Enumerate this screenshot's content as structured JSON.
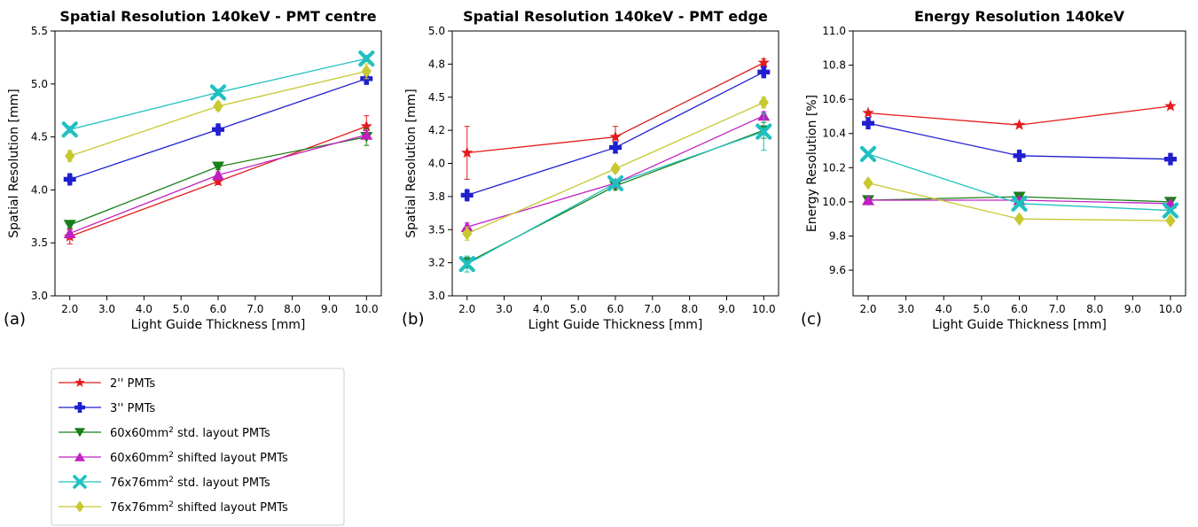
{
  "colors": {
    "2in": "#e41a1c",
    "3in": "#1f1fd0",
    "60std": "#1a7f1a",
    "60shift": "#c020c0",
    "76std": "#20c0c0",
    "76shift": "#c8c830"
  },
  "markers": {
    "2in": "star",
    "3in": "plus",
    "60std": "triangle-down",
    "60shift": "triangle-up",
    "76std": "x",
    "76shift": "diamond"
  },
  "panel_letters": [
    "(a)",
    "(b)",
    "(c)"
  ],
  "legend": {
    "items": [
      {
        "key": "2in",
        "pre": "2'' PMTs",
        "sup": "",
        "post": ""
      },
      {
        "key": "3in",
        "pre": "3'' PMTs",
        "sup": "",
        "post": ""
      },
      {
        "key": "60std",
        "pre": "60x60mm",
        "sup": "2",
        "post": " std. layout PMTs"
      },
      {
        "key": "60shift",
        "pre": "60x60mm",
        "sup": "2",
        "post": " shifted layout PMTs"
      },
      {
        "key": "76std",
        "pre": "76x76mm",
        "sup": "2",
        "post": " std. layout PMTs"
      },
      {
        "key": "76shift",
        "pre": "76x76mm",
        "sup": "2",
        "post": " shifted layout PMTs"
      }
    ]
  },
  "chart_data": [
    {
      "type": "line",
      "title": "Spatial Resolution 140keV - PMT centre",
      "xlabel": "Light Guide Thickness [mm]",
      "ylabel": "Spatial Resolution [mm]",
      "xlim": [
        1.6,
        10.4
      ],
      "ylim": [
        3.0,
        5.5
      ],
      "xticks": [
        "2.0",
        "3.0",
        "4.0",
        "5.0",
        "6.0",
        "7.0",
        "8.0",
        "9.0",
        "10.0"
      ],
      "yticks": [
        "3.0",
        "3.5",
        "4.0",
        "4.5",
        "5.0",
        "5.5"
      ],
      "x": [
        2,
        6,
        10
      ],
      "series": [
        {
          "key": "2in",
          "values": [
            3.56,
            4.08,
            4.6
          ],
          "err": [
            0.07,
            0.03,
            0.1
          ]
        },
        {
          "key": "3in",
          "values": [
            4.1,
            4.57,
            5.05
          ],
          "err": [
            0.03,
            0.03,
            0.04
          ]
        },
        {
          "key": "60std",
          "values": [
            3.67,
            4.22,
            4.5
          ],
          "err": [
            0.03,
            0.03,
            0.08
          ]
        },
        {
          "key": "60shift",
          "values": [
            3.59,
            4.14,
            4.52
          ],
          "err": [
            0.03,
            0.03,
            0.04
          ]
        },
        {
          "key": "76std",
          "values": [
            4.57,
            4.92,
            5.24
          ],
          "err": [
            0.03,
            0.03,
            0.03
          ]
        },
        {
          "key": "76shift",
          "values": [
            4.32,
            4.79,
            5.12
          ],
          "err": [
            0.05,
            0.04,
            0.07
          ]
        }
      ]
    },
    {
      "type": "line",
      "title": "Spatial Resolution 140keV - PMT edge",
      "xlabel": "Light Guide Thickness [mm]",
      "ylabel": "Spatial Resolution [mm]",
      "xlim": [
        1.6,
        10.4
      ],
      "ylim": [
        3.0,
        5.0
      ],
      "xticks": [
        "2.0",
        "3.0",
        "4.0",
        "5.0",
        "6.0",
        "7.0",
        "8.0",
        "9.0",
        "10.0"
      ],
      "yticks": [
        "3.0",
        "3.2",
        "3.5",
        "3.8",
        "4.0",
        "4.2",
        "4.5",
        "4.8",
        "5.0"
      ],
      "ytick_values": [
        3.0,
        3.25,
        3.5,
        3.75,
        4.0,
        4.25,
        4.5,
        4.75,
        5.0
      ],
      "x": [
        2,
        6,
        10
      ],
      "series": [
        {
          "key": "2in",
          "values": [
            4.08,
            4.2,
            4.76
          ],
          "err": [
            0.2,
            0.08,
            0.03
          ]
        },
        {
          "key": "3in",
          "values": [
            3.76,
            4.12,
            4.69
          ],
          "err": [
            0.03,
            0.04,
            0.03
          ]
        },
        {
          "key": "60std",
          "values": [
            3.25,
            3.83,
            4.25
          ],
          "err": [
            0.04,
            0.03,
            0.06
          ]
        },
        {
          "key": "60shift",
          "values": [
            3.52,
            3.85,
            4.36
          ],
          "err": [
            0.03,
            0.03,
            0.03
          ]
        },
        {
          "key": "76std",
          "values": [
            3.24,
            3.85,
            4.24
          ],
          "err": [
            0.06,
            0.03,
            0.14
          ]
        },
        {
          "key": "76shift",
          "values": [
            3.47,
            3.96,
            4.46
          ],
          "err": [
            0.05,
            0.03,
            0.04
          ]
        }
      ]
    },
    {
      "type": "line",
      "title": "Energy Resolution 140keV",
      "xlabel": "Light Guide Thickness [mm]",
      "ylabel": "Energy Resolution [%]",
      "xlim": [
        1.6,
        10.4
      ],
      "ylim": [
        9.45,
        11.0
      ],
      "xticks": [
        "2.0",
        "3.0",
        "4.0",
        "5.0",
        "6.0",
        "7.0",
        "8.0",
        "9.0",
        "10.0"
      ],
      "yticks": [
        "9.6",
        "9.8",
        "10.0",
        "10.2",
        "10.4",
        "10.6",
        "10.8",
        "11.0"
      ],
      "x": [
        2,
        6,
        10
      ],
      "series": [
        {
          "key": "2in",
          "values": [
            10.52,
            10.45,
            10.56
          ],
          "err": [
            0,
            0,
            0
          ]
        },
        {
          "key": "3in",
          "values": [
            10.46,
            10.27,
            10.25
          ],
          "err": [
            0,
            0,
            0
          ]
        },
        {
          "key": "60std",
          "values": [
            10.01,
            10.03,
            10.0
          ],
          "err": [
            0,
            0,
            0
          ]
        },
        {
          "key": "60shift",
          "values": [
            10.01,
            10.01,
            9.99
          ],
          "err": [
            0,
            0,
            0
          ]
        },
        {
          "key": "76std",
          "values": [
            10.28,
            9.99,
            9.95
          ],
          "err": [
            0,
            0,
            0
          ]
        },
        {
          "key": "76shift",
          "values": [
            10.11,
            9.9,
            9.89
          ],
          "err": [
            0,
            0,
            0
          ]
        }
      ]
    }
  ]
}
